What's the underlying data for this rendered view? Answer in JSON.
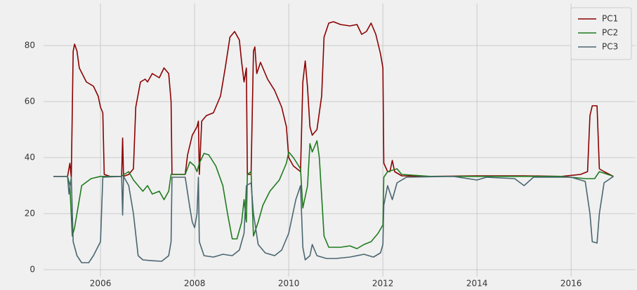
{
  "chart_data": {
    "type": "line",
    "xlim": [
      2004.79,
      2017.37
    ],
    "ylim": [
      -2.5,
      95
    ],
    "xticks": [
      2006,
      2008,
      2010,
      2012,
      2014,
      2016
    ],
    "yticks": [
      0,
      20,
      40,
      60,
      80
    ],
    "grid": true,
    "legend": "upper right",
    "series": [
      {
        "name": "PC1",
        "color": "#8b0000",
        "x": [
          2005.0,
          2005.3,
          2005.35,
          2005.38,
          2005.42,
          2005.45,
          2005.5,
          2005.55,
          2005.7,
          2005.85,
          2005.95,
          2006.0,
          2006.05,
          2006.08,
          2006.2,
          2006.45,
          2006.47,
          2006.49,
          2006.6,
          2006.7,
          2006.75,
          2006.85,
          2006.95,
          2007.0,
          2007.1,
          2007.25,
          2007.35,
          2007.45,
          2007.5,
          2007.52,
          2007.8,
          2007.85,
          2007.95,
          2008.05,
          2008.08,
          2008.1,
          2008.15,
          2008.25,
          2008.4,
          2008.55,
          2008.65,
          2008.75,
          2008.85,
          2008.95,
          2009.0,
          2009.05,
          2009.1,
          2009.12,
          2009.2,
          2009.25,
          2009.28,
          2009.32,
          2009.4,
          2009.55,
          2009.7,
          2009.85,
          2009.95,
          2010.0,
          2010.1,
          2010.25,
          2010.3,
          2010.35,
          2010.4,
          2010.45,
          2010.5,
          2010.6,
          2010.7,
          2010.75,
          2010.85,
          2010.95,
          2011.1,
          2011.3,
          2011.45,
          2011.55,
          2011.65,
          2011.75,
          2011.85,
          2011.95,
          2012.0,
          2012.02,
          2012.1,
          2012.15,
          2012.2,
          2012.25,
          2012.4,
          2013.0,
          2014.0,
          2015.0,
          2015.8,
          2016.2,
          2016.35,
          2016.4,
          2016.45,
          2016.55,
          2016.6,
          2016.7,
          2016.9
        ],
        "values": [
          33.3,
          33.3,
          38,
          33,
          78,
          80.5,
          78,
          72,
          67,
          65.5,
          62,
          58,
          56,
          34,
          33.3,
          33.3,
          47,
          33.3,
          34,
          36,
          58,
          67,
          68,
          67,
          70,
          68.5,
          72,
          70,
          60,
          34,
          34,
          41,
          48,
          51,
          53,
          34,
          53,
          55,
          56,
          62,
          72,
          83,
          85,
          82,
          74,
          67,
          72,
          34,
          34,
          78,
          79.5,
          70,
          74,
          68,
          64,
          58,
          51,
          40,
          37,
          35,
          67,
          74.5,
          65,
          51,
          48,
          50,
          62,
          83,
          88,
          88.5,
          87.5,
          87,
          87.5,
          84,
          85,
          88,
          84,
          77,
          72,
          38,
          35,
          35,
          39,
          35,
          33.5,
          33.3,
          33.5,
          33.5,
          33.3,
          34,
          35,
          55,
          58.5,
          58.5,
          36,
          35,
          33.3
        ]
      },
      {
        "name": "PC2",
        "color": "#1e7b1e",
        "x": [
          2005.0,
          2005.3,
          2005.35,
          2005.4,
          2005.45,
          2005.6,
          2005.8,
          2006.0,
          2006.45,
          2006.5,
          2006.6,
          2006.7,
          2006.8,
          2006.9,
          2007.0,
          2007.1,
          2007.25,
          2007.35,
          2007.45,
          2007.5,
          2007.8,
          2007.9,
          2008.0,
          2008.05,
          2008.1,
          2008.2,
          2008.3,
          2008.45,
          2008.6,
          2008.7,
          2008.8,
          2008.9,
          2009.0,
          2009.05,
          2009.1,
          2009.12,
          2009.2,
          2009.25,
          2009.35,
          2009.45,
          2009.6,
          2009.8,
          2009.95,
          2010.0,
          2010.1,
          2010.25,
          2010.3,
          2010.4,
          2010.45,
          2010.5,
          2010.6,
          2010.65,
          2010.75,
          2010.85,
          2011.1,
          2011.3,
          2011.45,
          2011.6,
          2011.75,
          2011.9,
          2012.0,
          2012.02,
          2012.1,
          2012.3,
          2012.4,
          2013.0,
          2015.8,
          2016.3,
          2016.5,
          2016.6,
          2016.9
        ],
        "values": [
          33.3,
          33.3,
          30,
          12,
          15,
          30,
          32.5,
          33.3,
          33.3,
          34,
          35,
          32,
          30,
          28,
          30,
          27,
          28,
          25,
          28,
          34,
          34,
          38.5,
          37,
          35,
          38,
          41.5,
          41,
          37,
          30,
          20,
          11,
          11,
          17,
          25,
          17,
          34,
          35,
          12,
          17,
          23,
          28,
          32,
          38,
          42,
          40,
          36,
          22,
          30,
          45,
          42,
          46,
          40,
          12,
          8,
          8,
          8.5,
          7.5,
          9,
          10,
          13,
          16,
          33,
          35,
          36,
          34,
          33.3,
          33.3,
          32.5,
          32.5,
          35,
          33.3
        ]
      },
      {
        "name": "PC3",
        "color": "#4a6670",
        "x": [
          2005.0,
          2005.3,
          2005.33,
          2005.38,
          2005.42,
          2005.5,
          2005.6,
          2005.75,
          2005.85,
          2006.0,
          2006.05,
          2006.45,
          2006.47,
          2006.49,
          2006.6,
          2006.7,
          2006.8,
          2006.9,
          2007.1,
          2007.3,
          2007.45,
          2007.5,
          2007.52,
          2007.8,
          2007.9,
          2007.95,
          2008.0,
          2008.05,
          2008.08,
          2008.1,
          2008.2,
          2008.4,
          2008.6,
          2008.8,
          2008.95,
          2009.05,
          2009.1,
          2009.2,
          2009.25,
          2009.35,
          2009.5,
          2009.7,
          2009.85,
          2010.0,
          2010.15,
          2010.25,
          2010.3,
          2010.35,
          2010.45,
          2010.5,
          2010.6,
          2010.8,
          2011.0,
          2011.3,
          2011.6,
          2011.8,
          2011.95,
          2012.0,
          2012.02,
          2012.1,
          2012.2,
          2012.3,
          2012.5,
          2013.5,
          2014.0,
          2014.2,
          2014.8,
          2015.0,
          2015.2,
          2016.0,
          2016.3,
          2016.4,
          2016.45,
          2016.55,
          2016.6,
          2016.7,
          2016.9
        ],
        "values": [
          33.3,
          33.3,
          27,
          33,
          10,
          5,
          2.5,
          2.5,
          5,
          10,
          33,
          33.3,
          19.5,
          33.3,
          30,
          20,
          5,
          3.5,
          3.2,
          3,
          5,
          10,
          33,
          33,
          22,
          17,
          15,
          20,
          33,
          10,
          5,
          4.5,
          5.5,
          5,
          7,
          13,
          30,
          31,
          20,
          9,
          6,
          5,
          7,
          13,
          25,
          30,
          8,
          3.5,
          5,
          9,
          5,
          4,
          4,
          4.5,
          5.5,
          4.5,
          6,
          9,
          23,
          30,
          25,
          31,
          33,
          33.3,
          32,
          33,
          32.5,
          30,
          33,
          33,
          31.5,
          20,
          10,
          9.5,
          20,
          31,
          33.3
        ]
      }
    ]
  }
}
